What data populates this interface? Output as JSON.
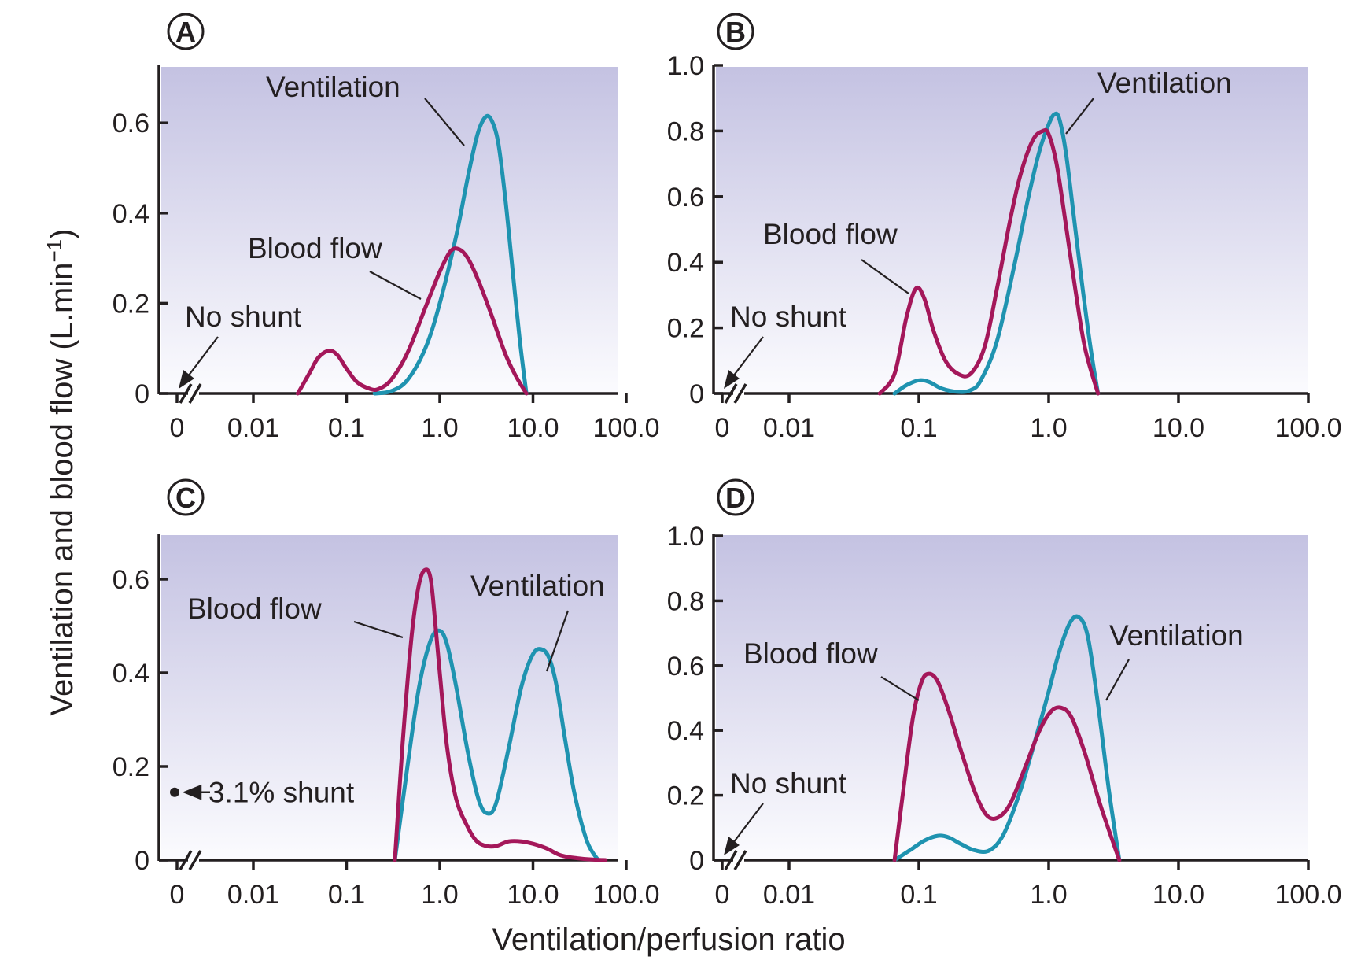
{
  "figure": {
    "ylabel": "Ventilation and blood flow (L.min",
    "ylabel_sup": "−1",
    "ylabel_close": ")",
    "xlabel": "Ventilation/perfusion ratio"
  },
  "colors": {
    "ventilation": "#1f93b0",
    "blood_flow": "#a4175a",
    "panel_bg_top": "#c4c2e2",
    "panel_bg_bottom": "#fbfbfe",
    "axis": "#231f20"
  },
  "chart_data": [
    {
      "type": "line",
      "panel": "A",
      "x_scale": "log",
      "x_ticks": [
        "0",
        "0.01",
        "0.1",
        "1.0",
        "10.0",
        "100.0"
      ],
      "y_ticks": [
        "0",
        "0.2",
        "0.4",
        "0.6"
      ],
      "ylim": [
        0,
        0.7
      ],
      "grid": false,
      "shunt_label": "No shunt",
      "series": [
        {
          "name": "Ventilation",
          "label": "Ventilation",
          "x": [
            0.2,
            0.3,
            0.45,
            0.7,
            1.0,
            1.5,
            2.0,
            2.5,
            3.0,
            3.5,
            4.2,
            5.0,
            6.0,
            7.2,
            8.5
          ],
          "y": [
            0,
            0.005,
            0.03,
            0.1,
            0.2,
            0.35,
            0.48,
            0.57,
            0.61,
            0.61,
            0.56,
            0.44,
            0.28,
            0.12,
            0
          ]
        },
        {
          "name": "Blood flow",
          "label": "Blood flow",
          "x": [
            0.03,
            0.04,
            0.05,
            0.065,
            0.08,
            0.1,
            0.13,
            0.18,
            0.22,
            0.3,
            0.45,
            0.7,
            1.0,
            1.3,
            1.6,
            2.0,
            2.6,
            3.5,
            5.0,
            6.5,
            8.5
          ],
          "y": [
            0,
            0.045,
            0.08,
            0.095,
            0.085,
            0.055,
            0.025,
            0.01,
            0.01,
            0.03,
            0.09,
            0.19,
            0.27,
            0.315,
            0.32,
            0.3,
            0.25,
            0.18,
            0.09,
            0.04,
            0
          ]
        }
      ]
    },
    {
      "type": "line",
      "panel": "B",
      "x_scale": "log",
      "x_ticks": [
        "0",
        "0.01",
        "0.1",
        "1.0",
        "10.0",
        "100.0"
      ],
      "y_ticks": [
        "0",
        "0.2",
        "0.4",
        "0.6",
        "0.8",
        "1.0"
      ],
      "ylim": [
        0,
        1.0
      ],
      "grid": false,
      "shunt_label": "No shunt",
      "series": [
        {
          "name": "Ventilation",
          "label": "Ventilation",
          "x": [
            0.065,
            0.08,
            0.1,
            0.12,
            0.15,
            0.2,
            0.25,
            0.3,
            0.4,
            0.55,
            0.7,
            0.85,
            1.0,
            1.1,
            1.2,
            1.35,
            1.55,
            1.8,
            2.1,
            2.4
          ],
          "y": [
            0,
            0.025,
            0.04,
            0.035,
            0.015,
            0.005,
            0.01,
            0.04,
            0.16,
            0.4,
            0.6,
            0.74,
            0.82,
            0.85,
            0.84,
            0.74,
            0.55,
            0.34,
            0.14,
            0
          ]
        },
        {
          "name": "Blood flow",
          "label": "Blood flow",
          "x": [
            0.05,
            0.065,
            0.08,
            0.095,
            0.11,
            0.13,
            0.16,
            0.2,
            0.25,
            0.32,
            0.4,
            0.5,
            0.6,
            0.75,
            0.9,
            1.0,
            1.15,
            1.35,
            1.6,
            1.9,
            2.4
          ],
          "y": [
            0,
            0.06,
            0.23,
            0.32,
            0.29,
            0.19,
            0.1,
            0.06,
            0.06,
            0.14,
            0.32,
            0.52,
            0.66,
            0.77,
            0.8,
            0.79,
            0.7,
            0.52,
            0.32,
            0.14,
            0
          ]
        }
      ]
    },
    {
      "type": "line",
      "panel": "C",
      "x_scale": "log",
      "x_ticks": [
        "0",
        "0.01",
        "0.1",
        "1.0",
        "10.0",
        "100.0"
      ],
      "y_ticks": [
        "0",
        "0.2",
        "0.4",
        "0.6"
      ],
      "ylim": [
        0,
        0.7
      ],
      "grid": false,
      "shunt_label": "3.1% shunt",
      "shunt_value": 0.145,
      "series": [
        {
          "name": "Ventilation",
          "label": "Ventilation",
          "x": [
            0.33,
            0.45,
            0.6,
            0.8,
            1.0,
            1.2,
            1.5,
            2.0,
            2.6,
            3.2,
            4.0,
            5.5,
            7.5,
            10.0,
            12.5,
            15.0,
            18.0,
            22.0,
            28.0,
            38.0,
            50.0
          ],
          "y": [
            0,
            0.2,
            0.37,
            0.47,
            0.49,
            0.46,
            0.37,
            0.23,
            0.13,
            0.1,
            0.12,
            0.24,
            0.37,
            0.44,
            0.45,
            0.43,
            0.37,
            0.26,
            0.14,
            0.04,
            0
          ]
        },
        {
          "name": "Blood flow",
          "label": "Blood flow",
          "x": [
            0.33,
            0.4,
            0.5,
            0.6,
            0.7,
            0.8,
            0.9,
            1.0,
            1.2,
            1.5,
            2.0,
            2.5,
            3.2,
            4.0,
            5.5,
            7.5,
            10.0,
            14.0,
            20.0,
            30.0,
            45.0,
            60.0
          ],
          "y": [
            0,
            0.25,
            0.48,
            0.59,
            0.62,
            0.6,
            0.5,
            0.4,
            0.24,
            0.13,
            0.07,
            0.04,
            0.03,
            0.03,
            0.04,
            0.04,
            0.035,
            0.025,
            0.01,
            0.004,
            0.001,
            0
          ]
        }
      ]
    },
    {
      "type": "line",
      "panel": "D",
      "x_scale": "log",
      "x_ticks": [
        "0",
        "0.01",
        "0.1",
        "1.0",
        "10.0",
        "100.0"
      ],
      "y_ticks": [
        "0",
        "0.2",
        "0.4",
        "0.6",
        "0.8",
        "1.0"
      ],
      "ylim": [
        0,
        1.0
      ],
      "grid": false,
      "shunt_label": "No shunt",
      "series": [
        {
          "name": "Ventilation",
          "label": "Ventilation",
          "x": [
            0.065,
            0.085,
            0.11,
            0.14,
            0.17,
            0.21,
            0.27,
            0.35,
            0.45,
            0.6,
            0.8,
            1.0,
            1.2,
            1.45,
            1.7,
            2.0,
            2.4,
            2.9,
            3.5
          ],
          "y": [
            0,
            0.03,
            0.06,
            0.075,
            0.07,
            0.05,
            0.03,
            0.03,
            0.08,
            0.21,
            0.38,
            0.52,
            0.64,
            0.73,
            0.75,
            0.69,
            0.48,
            0.22,
            0
          ]
        },
        {
          "name": "Blood flow",
          "label": "Blood flow",
          "x": [
            0.065,
            0.075,
            0.09,
            0.105,
            0.12,
            0.14,
            0.17,
            0.21,
            0.27,
            0.33,
            0.4,
            0.5,
            0.65,
            0.85,
            1.05,
            1.25,
            1.5,
            1.9,
            2.5,
            3.5
          ],
          "y": [
            0,
            0.2,
            0.44,
            0.55,
            0.575,
            0.55,
            0.46,
            0.34,
            0.21,
            0.14,
            0.13,
            0.17,
            0.28,
            0.4,
            0.46,
            0.47,
            0.44,
            0.33,
            0.17,
            0
          ]
        }
      ]
    }
  ]
}
